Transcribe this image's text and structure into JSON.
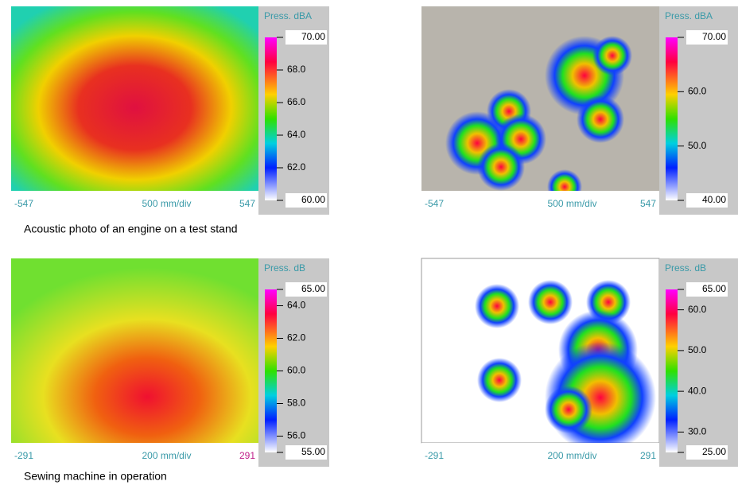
{
  "panels": [
    {
      "scale_title": "Press. dBA",
      "ticks": [
        {
          "value": 70,
          "label": "70.00"
        },
        {
          "value": 68,
          "label": "68.0"
        },
        {
          "value": 66,
          "label": "66.0"
        },
        {
          "value": 64,
          "label": "64.0"
        },
        {
          "value": 62,
          "label": "62.0"
        },
        {
          "value": 60,
          "label": "60.00"
        }
      ],
      "x_left": "-547",
      "x_center": "500 mm/div",
      "x_right": "547"
    },
    {
      "scale_title": "Press. dBA",
      "ticks": [
        {
          "value": 70,
          "label": "70.00"
        },
        {
          "value": 60,
          "label": "60.0"
        },
        {
          "value": 50,
          "label": "50.0"
        },
        {
          "value": 40,
          "label": "40.00"
        }
      ],
      "x_left": "-547",
      "x_center": "500 mm/div",
      "x_right": "547"
    },
    {
      "scale_title": "Press. dB",
      "ticks": [
        {
          "value": 65,
          "label": "65.00"
        },
        {
          "value": 64,
          "label": "64.0"
        },
        {
          "value": 62,
          "label": "62.0"
        },
        {
          "value": 60,
          "label": "60.0"
        },
        {
          "value": 58,
          "label": "58.0"
        },
        {
          "value": 56,
          "label": "56.0"
        },
        {
          "value": 55,
          "label": "55.00"
        }
      ],
      "x_left": "-291",
      "x_center": "200 mm/div",
      "x_right": "291"
    },
    {
      "scale_title": "Press. dB",
      "ticks": [
        {
          "value": 65,
          "label": "65.00"
        },
        {
          "value": 60,
          "label": "60.0"
        },
        {
          "value": 50,
          "label": "50.0"
        },
        {
          "value": 40,
          "label": "40.0"
        },
        {
          "value": 30,
          "label": "30.0"
        },
        {
          "value": 25,
          "label": "25.00"
        }
      ],
      "x_left": "-291",
      "x_center": "200 mm/div",
      "x_right": "291"
    }
  ],
  "captions": [
    "Acoustic photo of an engine on a test stand",
    "Sewing machine in operation"
  ]
}
